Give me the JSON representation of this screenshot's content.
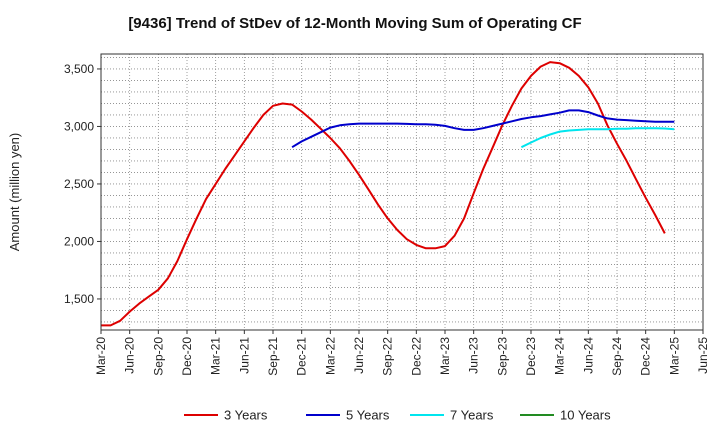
{
  "chart_data": {
    "type": "line",
    "title": "[9436]  Trend of StDev of 12-Month Moving Sum of Operating CF",
    "xlabel": "",
    "ylabel": "Amount (million yen)",
    "ylim": [
      1230,
      3630
    ],
    "yticks": [
      1500,
      2000,
      2500,
      3000,
      3500
    ],
    "ytick_labels": [
      "1,500",
      "2,000",
      "2,500",
      "3,000",
      "3,500"
    ],
    "xtick_labels": [
      "Mar-20",
      "Jun-20",
      "Sep-20",
      "Dec-20",
      "Mar-21",
      "Jun-21",
      "Sep-21",
      "Dec-21",
      "Mar-22",
      "Jun-22",
      "Sep-22",
      "Dec-22",
      "Mar-23",
      "Jun-23",
      "Sep-23",
      "Dec-23",
      "Mar-24",
      "Jun-24",
      "Sep-24",
      "Dec-24",
      "Mar-25",
      "Jun-25"
    ],
    "x_range_months": [
      0,
      63
    ],
    "grid": true,
    "legend_position": "bottom",
    "series": [
      {
        "name": "3 Years",
        "color": "#dd0000",
        "x": [
          0,
          1,
          2,
          3,
          4,
          5,
          6,
          7,
          8,
          9,
          10,
          11,
          12,
          13,
          14,
          15,
          16,
          17,
          18,
          19,
          20,
          21,
          22,
          23,
          24,
          25,
          26,
          27,
          28,
          29,
          30,
          31,
          32,
          33,
          34,
          35,
          36,
          37,
          38,
          39,
          40,
          41,
          42,
          43,
          44,
          45,
          46,
          47,
          48,
          49,
          50,
          51,
          52,
          53,
          54,
          55,
          56,
          57,
          58,
          59,
          60
        ],
        "values": [
          1270,
          1270,
          1310,
          1390,
          1460,
          1520,
          1580,
          1680,
          1830,
          2020,
          2200,
          2370,
          2500,
          2630,
          2750,
          2870,
          2990,
          3100,
          3180,
          3200,
          3190,
          3130,
          3060,
          2980,
          2900,
          2810,
          2700,
          2580,
          2450,
          2320,
          2200,
          2100,
          2020,
          1970,
          1940,
          1940,
          1960,
          2050,
          2200,
          2420,
          2630,
          2820,
          3010,
          3180,
          3330,
          3440,
          3520,
          3560,
          3550,
          3510,
          3440,
          3340,
          3200,
          3010,
          2850,
          2700,
          2540,
          2380,
          2230,
          2070,
          null
        ],
        "note": "ends at Mar-25"
      },
      {
        "name": "5 Years",
        "color": "#0000cc",
        "x": [
          20,
          21,
          22,
          23,
          24,
          25,
          26,
          27,
          28,
          29,
          30,
          31,
          32,
          33,
          34,
          35,
          36,
          37,
          38,
          39,
          40,
          41,
          42,
          43,
          44,
          45,
          46,
          47,
          48,
          49,
          50,
          51,
          52,
          53,
          54,
          55,
          56,
          57,
          58,
          59,
          60
        ],
        "values": [
          2820,
          2870,
          2910,
          2950,
          2990,
          3010,
          3020,
          3025,
          3025,
          3025,
          3025,
          3025,
          3022,
          3020,
          3020,
          3015,
          3005,
          2985,
          2970,
          2970,
          2985,
          3005,
          3025,
          3045,
          3065,
          3080,
          3090,
          3105,
          3120,
          3140,
          3140,
          3125,
          3095,
          3070,
          3060,
          3055,
          3050,
          3045,
          3040,
          3040,
          3040
        ]
      },
      {
        "name": "7 Years",
        "color": "#00e5ee",
        "x": [
          44,
          45,
          46,
          47,
          48,
          49,
          50,
          51,
          52,
          53,
          54,
          55,
          56,
          57,
          58,
          59,
          60
        ],
        "values": [
          2820,
          2860,
          2900,
          2930,
          2955,
          2965,
          2970,
          2975,
          2975,
          2975,
          2980,
          2980,
          2985,
          2985,
          2985,
          2982,
          2975
        ]
      },
      {
        "name": "10 Years",
        "color": "#228b22",
        "x": [],
        "values": []
      }
    ]
  }
}
